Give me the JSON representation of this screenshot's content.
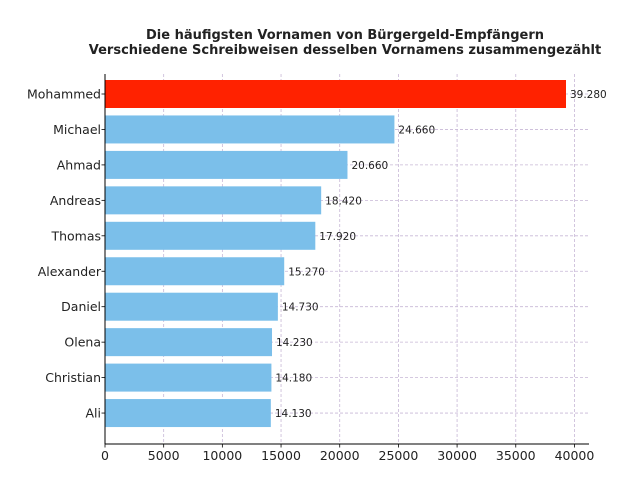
{
  "chart_data": {
    "type": "bar",
    "orientation": "horizontal",
    "title": "Die häufigsten Vornamen von Bürgergeld-Empfängern",
    "subtitle": "Verschiedene Schreibweisen desselben Vornamens zusammengezählt",
    "xlabel": "",
    "ylabel": "",
    "categories": [
      "Mohammed",
      "Michael",
      "Ahmad",
      "Andreas",
      "Thomas",
      "Alexander",
      "Daniel",
      "Olena",
      "Christian",
      "Ali"
    ],
    "values": [
      39280,
      24660,
      20660,
      18420,
      17920,
      15270,
      14730,
      14230,
      14180,
      14130
    ],
    "value_labels": [
      "39.280",
      "24.660",
      "20.660",
      "18.420",
      "17.920",
      "15.270",
      "14.730",
      "14.230",
      "14.180",
      "14.130"
    ],
    "xlim": [
      0,
      41240
    ],
    "x_ticks": [
      0,
      5000,
      10000,
      15000,
      20000,
      25000,
      30000,
      35000,
      40000
    ],
    "x_tick_labels": [
      "0",
      "5000",
      "10000",
      "15000",
      "20000",
      "25000",
      "30000",
      "35000",
      "40000"
    ],
    "grid": true,
    "grid_style": "dashed",
    "legend": "none",
    "colors": {
      "highlight": "#ff2200",
      "default": "#7bbfea",
      "grid": "#c7b7d6",
      "axis": "#000000",
      "text": "#222222"
    }
  }
}
